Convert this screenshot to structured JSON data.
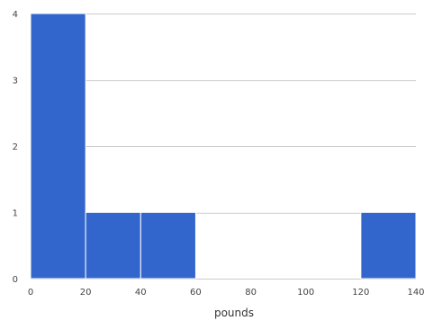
{
  "chart_data": {
    "type": "bar",
    "subtype": "histogram",
    "bins": [
      {
        "start": 0,
        "end": 20,
        "count": 4
      },
      {
        "start": 20,
        "end": 40,
        "count": 1
      },
      {
        "start": 40,
        "end": 60,
        "count": 1
      },
      {
        "start": 60,
        "end": 80,
        "count": 0
      },
      {
        "start": 80,
        "end": 100,
        "count": 0
      },
      {
        "start": 100,
        "end": 120,
        "count": 0
      },
      {
        "start": 120,
        "end": 140,
        "count": 1
      }
    ],
    "xlabel": "pounds",
    "ylabel": "",
    "title": "",
    "xlim": [
      0,
      140
    ],
    "ylim": [
      0,
      4
    ],
    "x_ticks": [
      "0",
      "20",
      "40",
      "60",
      "80",
      "100",
      "120",
      "140"
    ],
    "y_ticks": [
      "0",
      "1",
      "2",
      "3",
      "4"
    ],
    "grid": true,
    "colors": {
      "bar": "#3366cc",
      "bar_edge": "#ffffff",
      "grid": "#cccccc",
      "text": "#444444"
    }
  }
}
